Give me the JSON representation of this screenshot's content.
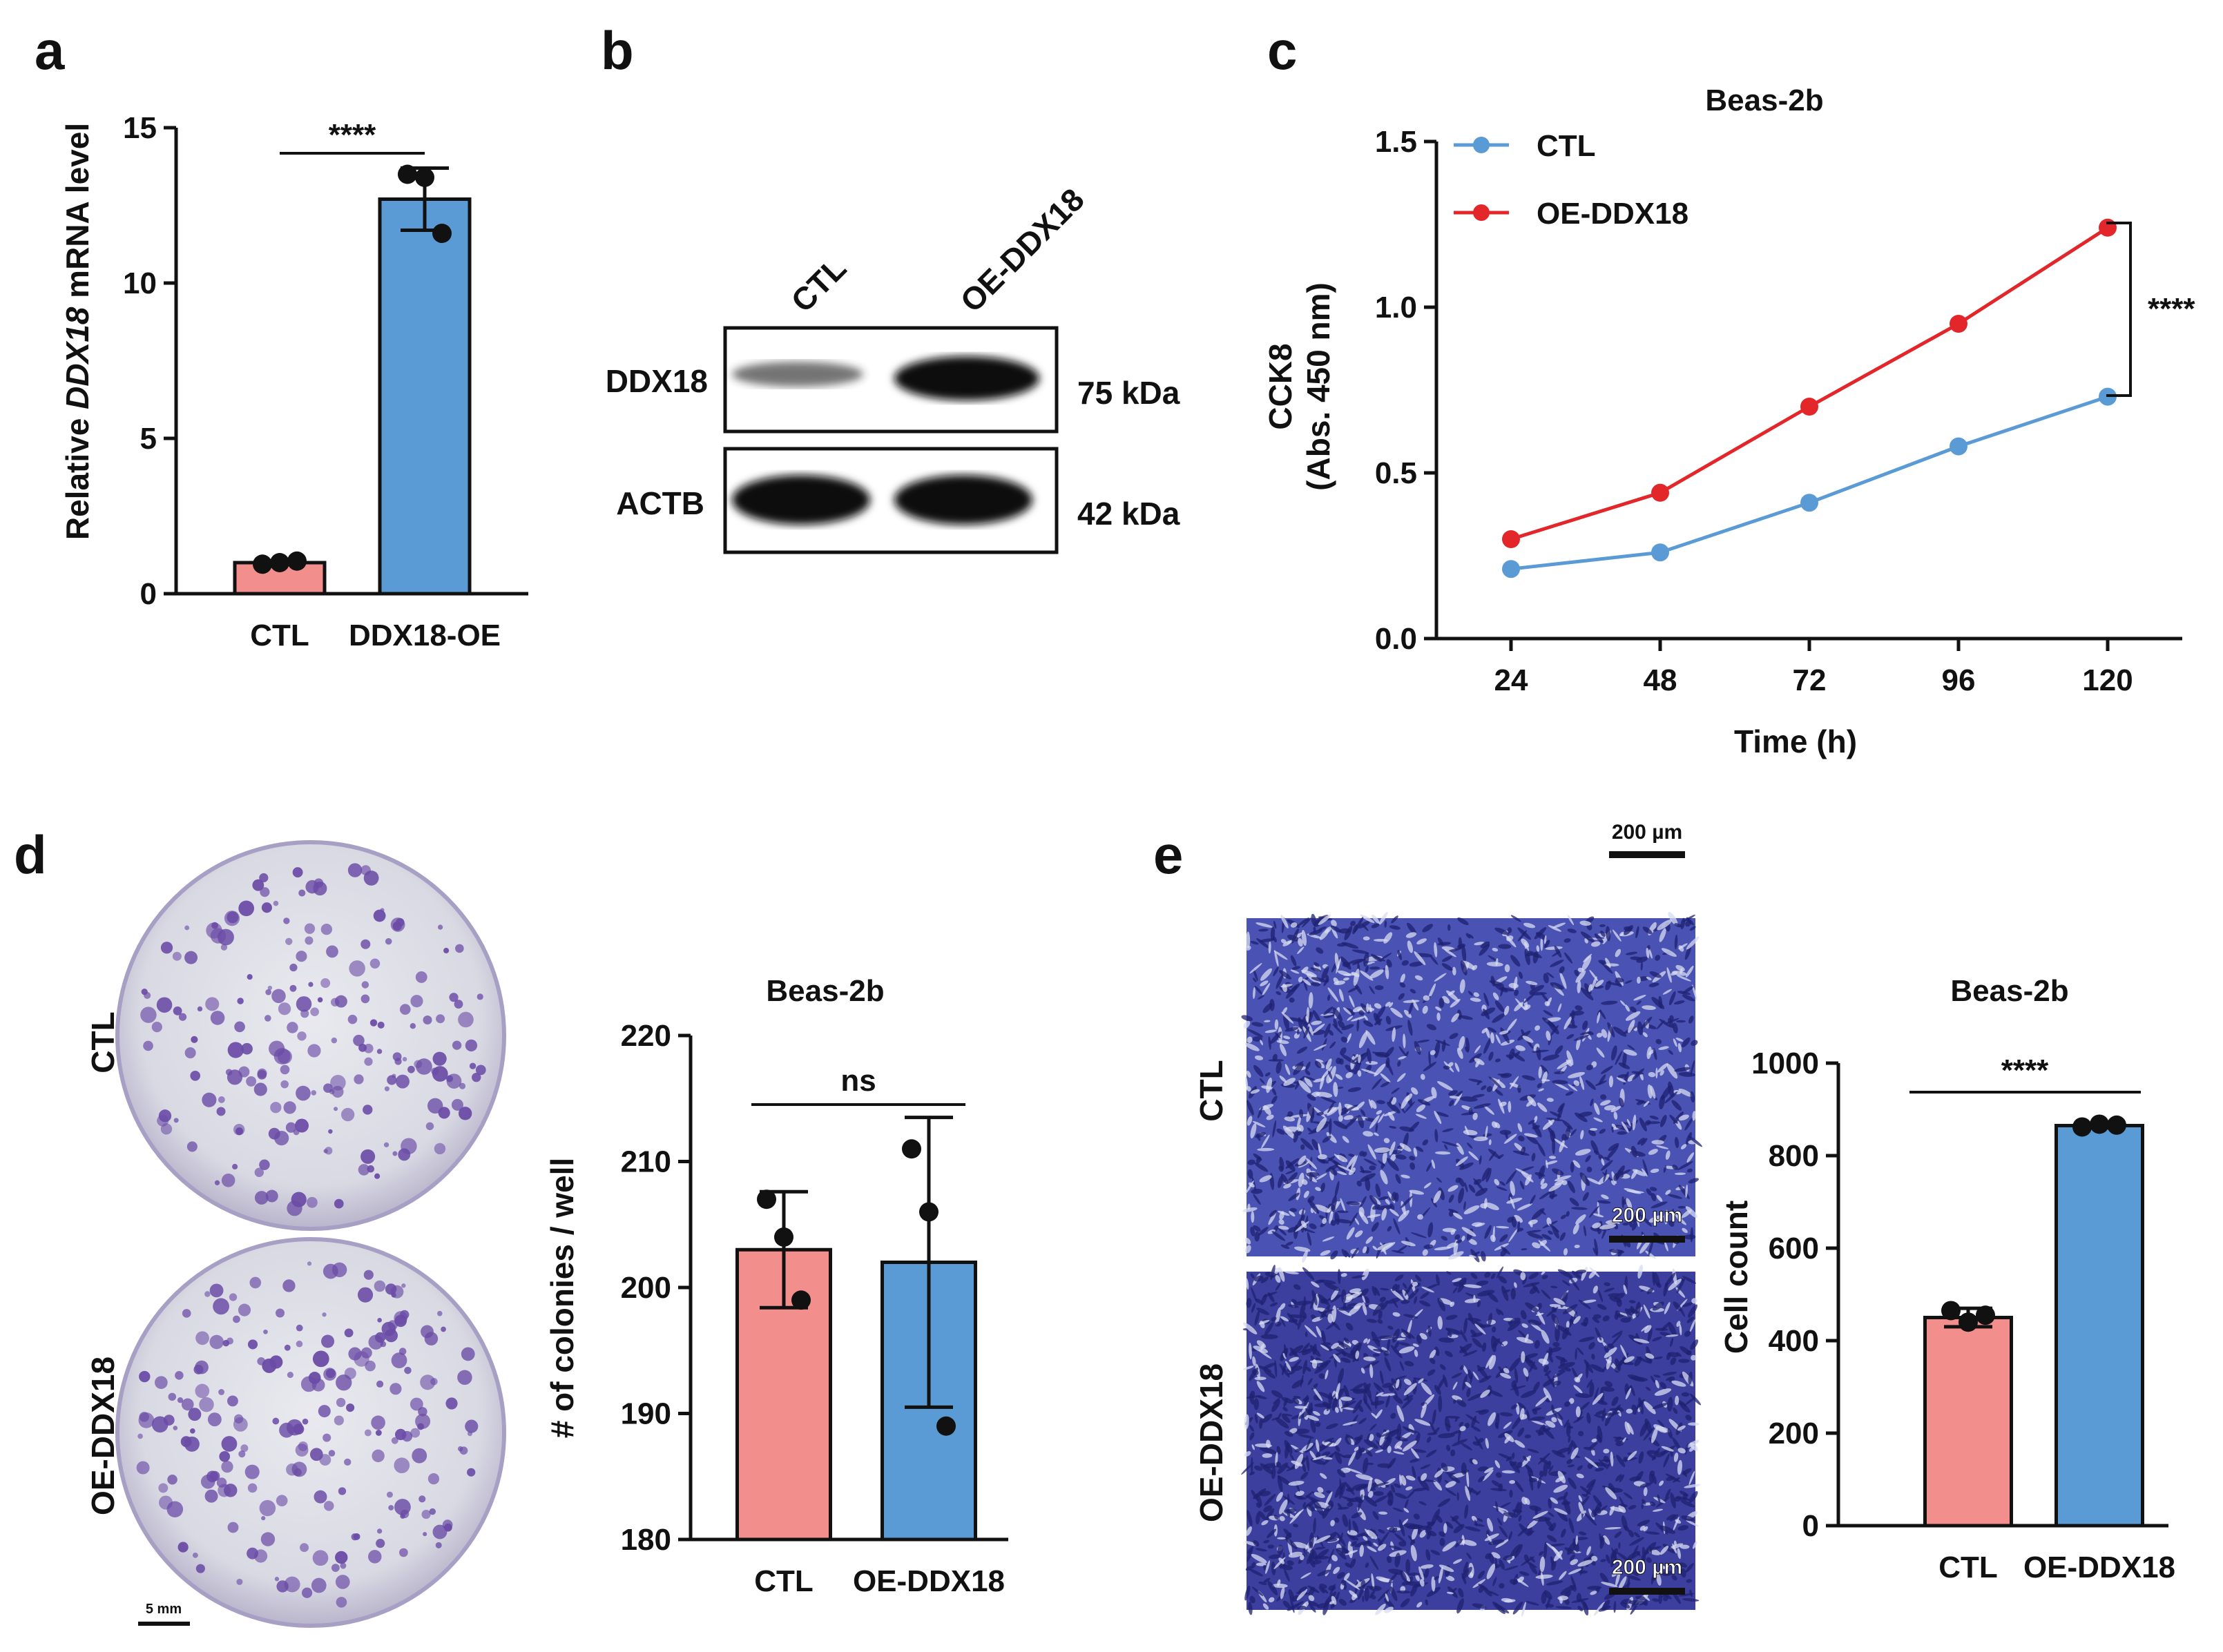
{
  "panels": {
    "a": "a",
    "b": "b",
    "c": "c",
    "d": "d",
    "e": "e"
  },
  "colors": {
    "ctl_bar": "#F28E8B",
    "oe_bar": "#5B9BD5",
    "ctl_line": "#5B9BD5",
    "oe_line": "#E3262A",
    "dish_stain": "#6A4BA6",
    "transwell_stain": "#3A3F9E"
  },
  "chart_data": [
    {
      "id": "a",
      "type": "bar",
      "categories": [
        "CTL",
        "DDX18-OE"
      ],
      "values": [
        1.0,
        12.7
      ],
      "error": [
        0.02,
        1.0
      ],
      "points": [
        [
          0.95,
          1.0,
          1.05
        ],
        [
          13.5,
          13.4,
          11.6
        ]
      ],
      "ylabel_prefix": "Relative ",
      "ylabel_gene": "DDX18",
      "ylabel_suffix": " mRNA level",
      "yticks": [
        "0",
        "5",
        "10",
        "15"
      ],
      "ylim": [
        0,
        15
      ],
      "significance": "****"
    },
    {
      "id": "c",
      "type": "line",
      "title": "Beas-2b",
      "x": [
        24,
        48,
        72,
        96,
        120
      ],
      "xticks": [
        "24",
        "48",
        "72",
        "96",
        "120"
      ],
      "xlabel": "Time (h)",
      "ylabel_line1": "CCK8",
      "ylabel_line2": "(Abs. 450 nm)",
      "yticks": [
        "0.0",
        "0.5",
        "1.0",
        "1.5"
      ],
      "ylim": [
        0,
        1.5
      ],
      "xlim": [
        12,
        132
      ],
      "series": [
        {
          "name": "CTL",
          "values": [
            0.21,
            0.26,
            0.41,
            0.58,
            0.73
          ]
        },
        {
          "name": "OE-DDX18",
          "values": [
            0.3,
            0.44,
            0.7,
            0.95,
            1.24
          ]
        }
      ],
      "legend": "top-left",
      "significance": "****"
    },
    {
      "id": "d",
      "type": "bar",
      "title": "Beas-2b",
      "categories": [
        "CTL",
        "OE-DDX18"
      ],
      "values": [
        203,
        202
      ],
      "error": [
        4.6,
        11.5
      ],
      "points": [
        [
          207,
          204,
          199
        ],
        [
          211,
          206,
          189
        ]
      ],
      "ylabel": "# of colonies / well",
      "yticks": [
        "180",
        "190",
        "200",
        "210",
        "220"
      ],
      "ylim": [
        180,
        220
      ],
      "significance": "ns"
    },
    {
      "id": "e",
      "type": "bar",
      "title": "Beas-2b",
      "categories": [
        "CTL",
        "OE-DDX18"
      ],
      "values": [
        450,
        865
      ],
      "error": [
        20,
        5
      ],
      "points": [
        [
          465,
          440,
          455
        ],
        [
          862,
          868,
          866
        ]
      ],
      "ylabel": "Cell count",
      "yticks": [
        "0",
        "200",
        "400",
        "600",
        "800",
        "1000"
      ],
      "ylim": [
        0,
        1000
      ],
      "significance": "****"
    }
  ],
  "western_blot": {
    "lanes": [
      "CTL",
      "OE-DDX18"
    ],
    "rows": [
      {
        "protein": "DDX18",
        "size": "75 kDa"
      },
      {
        "protein": "ACTB",
        "size": "42 kDa"
      }
    ]
  },
  "colony": {
    "labels": [
      "CTL",
      "OE-DDX18"
    ],
    "scale": "5 mm"
  },
  "transwell": {
    "labels": [
      "CTL",
      "OE-DDX18"
    ],
    "scale": "200 µm"
  }
}
